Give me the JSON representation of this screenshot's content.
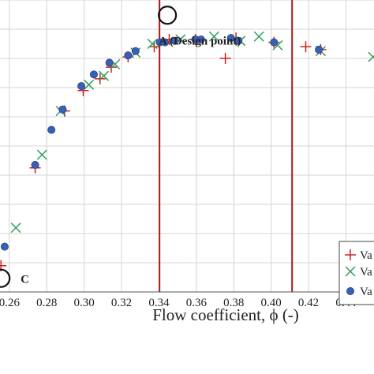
{
  "chart_data": {
    "type": "scatter",
    "xlabel": "Flow coefficient, ϕ  (-)",
    "xlim": [
      0.255,
      0.455
    ],
    "ylim": [
      0.0,
      1.0
    ],
    "xticks": [
      0.26,
      0.28,
      0.3,
      0.32,
      0.34,
      0.36,
      0.38,
      0.4,
      0.42,
      0.44
    ],
    "xtick_labels": [
      "0.26",
      "0.28",
      "0.30",
      "0.32",
      "0.34",
      "0.36",
      "0.38",
      "0.40",
      "0.42",
      "0.44"
    ],
    "grid": true,
    "vertical_lines": [
      {
        "x": 0.3403,
        "color": "#b01818"
      },
      {
        "x": 0.4112,
        "color": "#b01818"
      }
    ],
    "annotations": [
      {
        "text": "A (Design point)",
        "x": 0.3445,
        "y": 0.875
      },
      {
        "text": "C",
        "x": 0.2555,
        "y": 0.09
      }
    ],
    "legend": {
      "placement": "bottom-right",
      "entries": [
        {
          "label": "Va",
          "marker": "plus",
          "color": "#cc2222"
        },
        {
          "label": "Va",
          "marker": "cross",
          "color": "#2e9e5a"
        },
        {
          "label": "Va",
          "marker": "dot",
          "color": "#3a5fb8"
        }
      ]
    },
    "series": [
      {
        "marker": "plus",
        "color": "#cc2222",
        "x": [
          0.2555,
          0.2738,
          0.2895,
          0.2995,
          0.3085,
          0.3145,
          0.3235,
          0.3375,
          0.3455,
          0.3595,
          0.3755,
          0.3812,
          0.4015,
          0.4185,
          0.4265
        ],
        "y": [
          0.09,
          0.425,
          0.62,
          0.69,
          0.73,
          0.77,
          0.805,
          0.84,
          0.865,
          0.865,
          0.8,
          0.87,
          0.855,
          0.84,
          0.83
        ]
      },
      {
        "marker": "cross",
        "color": "#2e9e5a",
        "x": [
          0.2635,
          0.2775,
          0.2875,
          0.3025,
          0.3105,
          0.3165,
          0.3275,
          0.3365,
          0.3515,
          0.3695,
          0.3835,
          0.3935,
          0.4035,
          0.4265,
          0.4545
        ],
        "y": [
          0.22,
          0.47,
          0.62,
          0.71,
          0.74,
          0.78,
          0.82,
          0.85,
          0.865,
          0.875,
          0.86,
          0.875,
          0.845,
          0.825,
          0.805
        ]
      },
      {
        "marker": "dot",
        "color": "#3a5fb8",
        "x": [
          0.2575,
          0.2738,
          0.2825,
          0.2885,
          0.2985,
          0.3052,
          0.3135,
          0.3235,
          0.3275,
          0.3405,
          0.3432,
          0.3485,
          0.3595,
          0.3625,
          0.3785,
          0.3825,
          0.4015,
          0.4255
        ],
        "y": [
          0.155,
          0.435,
          0.555,
          0.625,
          0.705,
          0.745,
          0.785,
          0.81,
          0.825,
          0.855,
          0.855,
          0.86,
          0.865,
          0.865,
          0.87,
          0.86,
          0.855,
          0.83
        ]
      }
    ]
  }
}
